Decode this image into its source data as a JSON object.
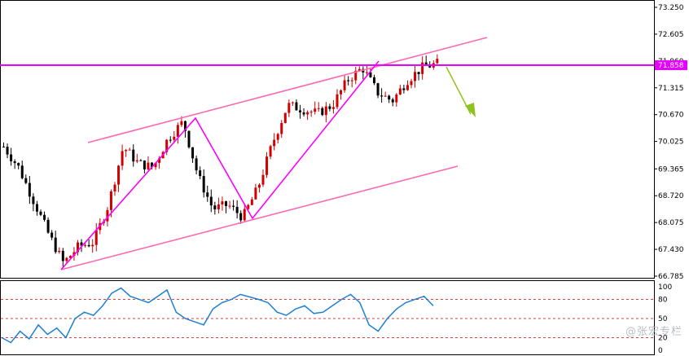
{
  "chart_data": [
    {
      "type": "candlestick",
      "title": "",
      "xlabel": "",
      "ylabel": "",
      "ylim": [
        66.785,
        73.25
      ],
      "y_ticks": [
        "73.250",
        "72.605",
        "71.960",
        "71.315",
        "70.670",
        "70.025",
        "69.365",
        "68.720",
        "68.075",
        "67.430",
        "66.785"
      ],
      "current_price": 71.858,
      "current_price_label": "71.858",
      "grid": false,
      "colors": {
        "up": "#d10000",
        "down": "#000000",
        "channel": "#ff69b4",
        "zigzag": "#ff00ff",
        "price_line": "#e600ff",
        "arrow": "#8dc21f"
      },
      "approx_close_path": [
        69.9,
        69.4,
        68.6,
        67.8,
        67.1,
        67.5,
        67.6,
        68.5,
        69.9,
        69.5,
        69.4,
        70.1,
        70.5,
        69.2,
        68.4,
        68.5,
        68.2,
        68.9,
        70.0,
        70.9,
        70.8,
        70.7,
        70.9,
        71.5,
        71.8,
        71.2,
        71.0,
        71.5,
        71.8,
        71.9
      ]
    },
    {
      "type": "line",
      "title": "",
      "ylim": [
        0,
        100
      ],
      "y_ticks": [
        "100",
        "80",
        "50",
        "20",
        "0"
      ],
      "levels": [
        80,
        50,
        20
      ],
      "series_color": "#1e7fd4",
      "values": [
        20,
        12,
        30,
        18,
        40,
        25,
        35,
        20,
        50,
        60,
        55,
        70,
        90,
        98,
        85,
        80,
        75,
        85,
        95,
        60,
        50,
        45,
        40,
        65,
        75,
        80,
        88,
        84,
        80,
        75,
        60,
        55,
        65,
        70,
        58,
        60,
        70,
        80,
        88,
        75,
        40,
        30,
        50,
        65,
        75,
        80,
        85,
        70
      ]
    }
  ],
  "watermark": "@张宏专栏"
}
